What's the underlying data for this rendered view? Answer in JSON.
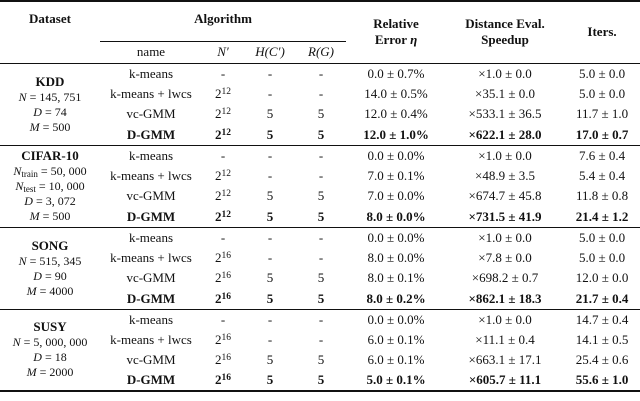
{
  "header": {
    "dataset": "Dataset",
    "algorithm": "Algorithm",
    "name": "name",
    "n_prime": "$N′$",
    "h_c_prime": "$H(C′)$",
    "r_g": "$R(G)$",
    "relative_error": [
      "Relative",
      "Error $η$"
    ],
    "distance_speedup": [
      "Distance Eval.",
      "Speedup"
    ],
    "iters": "Iters."
  },
  "blocks": [
    {
      "dataset_name": "KDD",
      "dataset_info": [
        "$N$ = 145, 751",
        "$D$ = 74",
        "$M$ = 500"
      ],
      "rows": [
        {
          "name": "k-means",
          "n_prime": "-",
          "h": "-",
          "r": "-",
          "error": "0.0 ± 0.7%",
          "speedup": "×1.0 ± 0.0",
          "iters": "5.0 ± 0.0",
          "bold": false
        },
        {
          "name": "k-means + lwcs",
          "n_prime": "2^{12}",
          "h": "-",
          "r": "-",
          "error": "14.0 ± 0.5%",
          "speedup": "×35.1 ± 0.0",
          "iters": "5.0 ± 0.0",
          "bold": false
        },
        {
          "name": "vc-GMM",
          "n_prime": "2^{12}",
          "h": "5",
          "r": "5",
          "error": "12.0 ± 0.4%",
          "speedup": "×533.1 ± 36.5",
          "iters": "11.7 ± 1.0",
          "bold": false
        },
        {
          "name": "D-GMM",
          "n_prime": "2^{12}",
          "h": "5",
          "r": "5",
          "error": "12.0 ± 1.0%",
          "speedup": "×622.1 ± 28.0",
          "iters": "17.0 ± 0.7",
          "bold": true
        }
      ]
    },
    {
      "dataset_name": "CIFAR-10",
      "dataset_info": [
        "$N$_{train} = 50, 000",
        "$N$_{test} = 10, 000",
        "$D$ = 3, 072",
        "$M$ = 500"
      ],
      "rows": [
        {
          "name": "k-means",
          "n_prime": "-",
          "h": "-",
          "r": "-",
          "error": "0.0 ± 0.0%",
          "speedup": "×1.0 ± 0.0",
          "iters": "7.6 ± 0.4",
          "bold": false
        },
        {
          "name": "k-means + lwcs",
          "n_prime": "2^{12}",
          "h": "-",
          "r": "-",
          "error": "7.0 ± 0.1%",
          "speedup": "×48.9 ± 3.5",
          "iters": "5.4 ± 0.4",
          "bold": false
        },
        {
          "name": "vc-GMM",
          "n_prime": "2^{12}",
          "h": "5",
          "r": "5",
          "error": "7.0 ± 0.0%",
          "speedup": "×674.7 ± 45.8",
          "iters": "11.8 ± 0.8",
          "bold": false
        },
        {
          "name": "D-GMM",
          "n_prime": "2^{12}",
          "h": "5",
          "r": "5",
          "error": "8.0 ± 0.0%",
          "speedup": "×731.5 ± 41.9",
          "iters": "21.4 ± 1.2",
          "bold": true
        }
      ]
    },
    {
      "dataset_name": "SONG",
      "dataset_info": [
        "$N$ = 515, 345",
        "$D$ = 90",
        "$M$ = 4000"
      ],
      "rows": [
        {
          "name": "k-means",
          "n_prime": "-",
          "h": "-",
          "r": "-",
          "error": "0.0 ± 0.0%",
          "speedup": "×1.0 ± 0.0",
          "iters": "5.0 ± 0.0",
          "bold": false
        },
        {
          "name": "k-means + lwcs",
          "n_prime": "2^{16}",
          "h": "-",
          "r": "-",
          "error": "8.0 ± 0.0%",
          "speedup": "×7.8 ± 0.0",
          "iters": "5.0 ± 0.0",
          "bold": false
        },
        {
          "name": "vc-GMM",
          "n_prime": "2^{16}",
          "h": "5",
          "r": "5",
          "error": "8.0 ± 0.1%",
          "speedup": "×698.2 ± 0.7",
          "iters": "12.0 ± 0.0",
          "bold": false
        },
        {
          "name": "D-GMM",
          "n_prime": "2^{16}",
          "h": "5",
          "r": "5",
          "error": "8.0 ± 0.2%",
          "speedup": "×862.1 ± 18.3",
          "iters": "21.7 ± 0.4",
          "bold": true
        }
      ]
    },
    {
      "dataset_name": "SUSY",
      "dataset_info": [
        "$N$ = 5, 000, 000",
        "$D$ = 18",
        "$M$ = 2000"
      ],
      "rows": [
        {
          "name": "k-means",
          "n_prime": "-",
          "h": "-",
          "r": "-",
          "error": "0.0 ± 0.0%",
          "speedup": "×1.0 ± 0.0",
          "iters": "14.7 ± 0.4",
          "bold": false
        },
        {
          "name": "k-means + lwcs",
          "n_prime": "2^{16}",
          "h": "-",
          "r": "-",
          "error": "6.0 ± 0.1%",
          "speedup": "×11.1 ± 0.4",
          "iters": "14.1 ± 0.5",
          "bold": false
        },
        {
          "name": "vc-GMM",
          "n_prime": "2^{16}",
          "h": "5",
          "r": "5",
          "error": "6.0 ± 0.1%",
          "speedup": "×663.1 ± 17.1",
          "iters": "25.4 ± 0.6",
          "bold": false
        },
        {
          "name": "D-GMM",
          "n_prime": "2^{16}",
          "h": "5",
          "r": "5",
          "error": "5.0 ± 0.1%",
          "speedup": "×605.7 ± 11.1",
          "iters": "55.6 ± 1.0",
          "bold": true
        }
      ]
    }
  ]
}
